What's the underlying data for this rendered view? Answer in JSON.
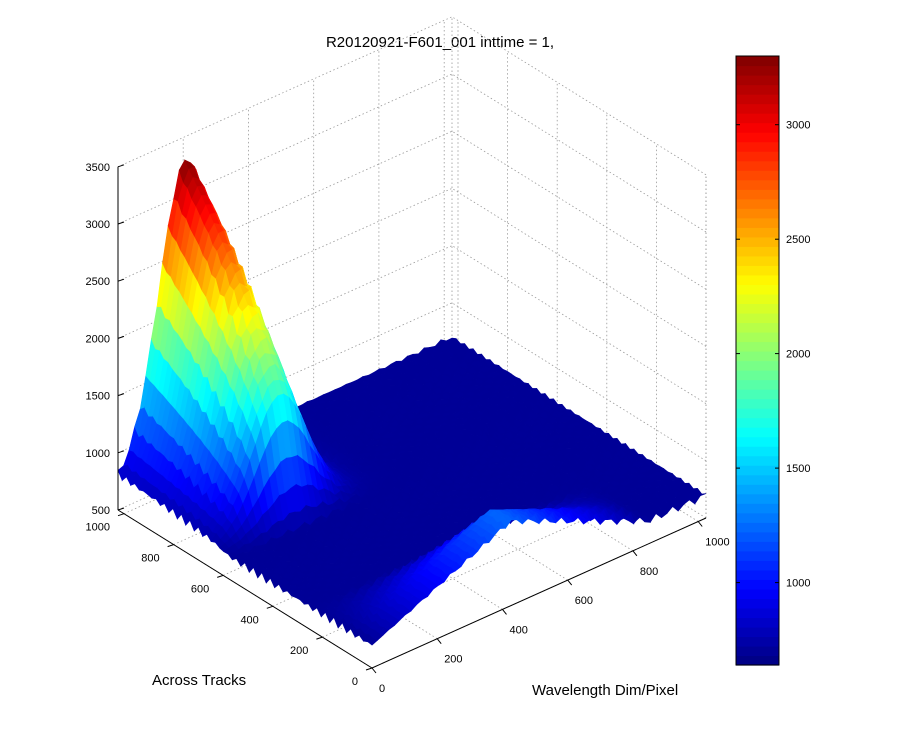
{
  "chart_data": {
    "type": "surface3d",
    "title": "R20120921-F601_001 inttime = 1,",
    "xlabel": "Wavelength Dim/Pixel",
    "ylabel": "Across Tracks",
    "zlabel": "",
    "x_ticks": [
      "0",
      "200",
      "400",
      "600",
      "800",
      "1000"
    ],
    "y_ticks": [
      "0",
      "200",
      "400",
      "600",
      "800",
      "1000"
    ],
    "z_ticks": [
      "500",
      "1000",
      "1500",
      "2000",
      "2500",
      "3000",
      "3500"
    ],
    "xlim": [
      0,
      1024
    ],
    "ylim": [
      0,
      1024
    ],
    "zlim": [
      500,
      3500
    ],
    "colormap": "jet",
    "colorbar": {
      "ticks": [
        "1000",
        "1500",
        "2000",
        "2500",
        "3000"
      ],
      "clim": [
        640,
        3300
      ]
    },
    "baseline_value": 700,
    "features": [
      {
        "kind": "peak",
        "x_center": 210,
        "x_width": 130,
        "y_from": 560,
        "y_to": 1024,
        "peak_value": 3300
      },
      {
        "kind": "ridge",
        "x_from": 0,
        "x_to": 850,
        "y_from": 0,
        "y_to": 240,
        "peak_value": 1300
      }
    ],
    "grid": true
  }
}
